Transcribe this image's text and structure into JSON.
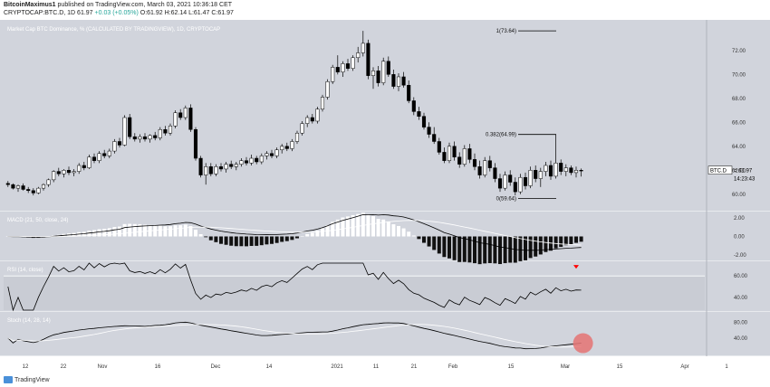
{
  "header": {
    "author": "BitcoinMaximus1",
    "published": "published on TradingView.com, March 03, 2021 10:36:18 CET",
    "symbol": "CRYPTOCAP:BTC.D, 1D",
    "last": "61.97",
    "change": "+0.03 (+0.05%)",
    "ohlc": "O:61.92 H:62.14 L:61.47 C:61.97"
  },
  "footer": {
    "brand": "TradingView"
  },
  "chart_data": {
    "type": "candlestick",
    "title": "Market Cap BTC Dominance, % (CALCULATED BY TRADINGVIEW), 1D, CRYPTOCAP",
    "price_axis_ticks": [
      60,
      62,
      64,
      66,
      68,
      70,
      72
    ],
    "price_axis_labels": [
      "60.00",
      "62.00",
      "64.00",
      "66.00",
      "68.00",
      "70.00",
      "72.00"
    ],
    "ylim": [
      59.0,
      73.8
    ],
    "time_axis_labels": [
      "12",
      "22",
      "Nov",
      "16",
      "Dec",
      "14",
      "2021",
      "11",
      "21",
      "Feb",
      "15",
      "Mar",
      "15",
      "Apr",
      "1"
    ],
    "price_label": "BTC.D",
    "price_value": "61.97",
    "countdown": "14:23:43",
    "fib_levels": [
      {
        "label": "1(73.64)",
        "value": 73.64
      },
      {
        "label": "0.382(64.99)",
        "value": 64.99
      },
      {
        "label": "0(59.64)",
        "value": 59.64
      }
    ],
    "candles": [
      [
        60.9,
        61.1,
        60.6,
        60.8
      ],
      [
        60.8,
        60.9,
        60.4,
        60.5
      ],
      [
        60.5,
        60.8,
        60.2,
        60.7
      ],
      [
        60.7,
        60.9,
        60.3,
        60.4
      ],
      [
        60.4,
        60.6,
        60.1,
        60.3
      ],
      [
        60.3,
        60.5,
        59.9,
        60.1
      ],
      [
        60.1,
        60.6,
        60.0,
        60.5
      ],
      [
        60.5,
        60.9,
        60.3,
        60.8
      ],
      [
        60.8,
        61.3,
        60.6,
        61.2
      ],
      [
        61.2,
        62.0,
        61.0,
        61.9
      ],
      [
        61.9,
        62.2,
        61.5,
        61.7
      ],
      [
        61.7,
        62.1,
        61.4,
        62.0
      ],
      [
        62.0,
        62.3,
        61.6,
        61.8
      ],
      [
        61.8,
        62.1,
        61.5,
        61.9
      ],
      [
        61.9,
        62.6,
        61.7,
        62.4
      ],
      [
        62.4,
        62.7,
        62.0,
        62.2
      ],
      [
        62.2,
        63.3,
        62.1,
        63.1
      ],
      [
        63.1,
        63.4,
        62.6,
        62.8
      ],
      [
        62.8,
        63.6,
        62.6,
        63.4
      ],
      [
        63.4,
        63.7,
        63.0,
        63.2
      ],
      [
        63.2,
        63.8,
        63.0,
        63.6
      ],
      [
        63.6,
        64.6,
        63.4,
        64.4
      ],
      [
        64.4,
        64.7,
        63.9,
        64.1
      ],
      [
        64.1,
        66.6,
        64.0,
        66.4
      ],
      [
        66.4,
        66.7,
        64.6,
        64.8
      ],
      [
        64.8,
        65.1,
        64.4,
        64.6
      ],
      [
        64.6,
        65.0,
        64.3,
        64.8
      ],
      [
        64.8,
        65.1,
        64.4,
        64.6
      ],
      [
        64.6,
        65.0,
        64.3,
        64.9
      ],
      [
        64.9,
        65.2,
        64.5,
        64.7
      ],
      [
        64.7,
        65.6,
        64.5,
        65.4
      ],
      [
        65.4,
        65.7,
        64.9,
        65.1
      ],
      [
        65.1,
        65.9,
        64.9,
        65.7
      ],
      [
        65.7,
        67.0,
        65.5,
        66.8
      ],
      [
        66.8,
        67.1,
        66.2,
        66.4
      ],
      [
        66.4,
        67.4,
        66.2,
        67.2
      ],
      [
        67.2,
        67.5,
        65.2,
        65.4
      ],
      [
        65.4,
        65.6,
        62.8,
        63.0
      ],
      [
        63.0,
        63.2,
        61.4,
        61.6
      ],
      [
        61.6,
        62.6,
        60.8,
        62.3
      ],
      [
        62.3,
        62.6,
        61.5,
        61.7
      ],
      [
        61.7,
        62.5,
        61.5,
        62.3
      ],
      [
        62.3,
        62.6,
        61.9,
        62.1
      ],
      [
        62.1,
        62.7,
        61.8,
        62.5
      ],
      [
        62.5,
        62.8,
        62.1,
        62.3
      ],
      [
        62.3,
        62.7,
        62.0,
        62.5
      ],
      [
        62.5,
        63.0,
        62.3,
        62.8
      ],
      [
        62.8,
        63.1,
        62.4,
        62.6
      ],
      [
        62.6,
        63.3,
        62.4,
        63.0
      ],
      [
        63.0,
        63.2,
        62.5,
        62.7
      ],
      [
        62.7,
        63.4,
        62.5,
        63.2
      ],
      [
        63.2,
        63.6,
        62.9,
        63.4
      ],
      [
        63.4,
        63.7,
        63.0,
        63.2
      ],
      [
        63.2,
        63.9,
        63.0,
        63.7
      ],
      [
        63.7,
        64.2,
        63.4,
        64.0
      ],
      [
        64.0,
        64.3,
        63.6,
        63.8
      ],
      [
        63.8,
        64.6,
        63.6,
        64.4
      ],
      [
        64.4,
        65.3,
        64.2,
        65.1
      ],
      [
        65.1,
        66.1,
        64.9,
        65.9
      ],
      [
        65.9,
        66.6,
        65.6,
        66.4
      ],
      [
        66.4,
        66.7,
        65.9,
        66.1
      ],
      [
        66.1,
        67.3,
        65.9,
        67.1
      ],
      [
        67.1,
        68.3,
        66.9,
        68.1
      ],
      [
        68.1,
        69.6,
        67.9,
        69.4
      ],
      [
        69.4,
        70.8,
        69.2,
        70.6
      ],
      [
        70.6,
        71.6,
        70.0,
        70.2
      ],
      [
        70.2,
        71.1,
        69.8,
        70.9
      ],
      [
        70.9,
        71.3,
        70.3,
        70.5
      ],
      [
        70.5,
        71.6,
        70.3,
        71.4
      ],
      [
        71.4,
        72.3,
        71.0,
        71.8
      ],
      [
        71.8,
        73.64,
        71.5,
        72.6
      ],
      [
        72.6,
        72.9,
        69.6,
        69.9
      ],
      [
        69.9,
        70.6,
        68.8,
        70.3
      ],
      [
        70.3,
        70.7,
        69.0,
        69.3
      ],
      [
        69.3,
        71.4,
        69.1,
        71.1
      ],
      [
        71.1,
        71.5,
        69.8,
        70.0
      ],
      [
        70.0,
        70.4,
        68.8,
        69.0
      ],
      [
        69.0,
        70.1,
        68.6,
        69.8
      ],
      [
        69.8,
        70.2,
        68.9,
        69.1
      ],
      [
        69.1,
        69.5,
        67.6,
        67.8
      ],
      [
        67.8,
        68.1,
        66.6,
        66.9
      ],
      [
        66.9,
        67.3,
        66.2,
        66.5
      ],
      [
        66.5,
        66.8,
        65.4,
        65.6
      ],
      [
        65.6,
        66.0,
        64.7,
        65.0
      ],
      [
        65.0,
        65.6,
        64.2,
        64.4
      ],
      [
        64.4,
        64.7,
        63.3,
        63.5
      ],
      [
        63.5,
        63.9,
        62.6,
        62.8
      ],
      [
        62.8,
        64.3,
        62.6,
        64.0
      ],
      [
        64.0,
        64.4,
        62.8,
        63.1
      ],
      [
        63.1,
        63.5,
        62.2,
        62.5
      ],
      [
        62.5,
        64.1,
        62.3,
        63.8
      ],
      [
        63.8,
        64.2,
        62.6,
        62.9
      ],
      [
        62.9,
        63.4,
        62.0,
        62.3
      ],
      [
        62.3,
        62.8,
        61.3,
        61.6
      ],
      [
        61.6,
        63.1,
        61.4,
        62.8
      ],
      [
        62.8,
        63.2,
        61.9,
        62.2
      ],
      [
        62.2,
        62.6,
        61.0,
        61.3
      ],
      [
        61.3,
        61.7,
        60.2,
        60.5
      ],
      [
        60.5,
        61.9,
        60.3,
        61.6
      ],
      [
        61.6,
        62.0,
        60.7,
        61.0
      ],
      [
        61.0,
        61.4,
        59.9,
        60.2
      ],
      [
        60.2,
        61.7,
        60.0,
        61.4
      ],
      [
        61.4,
        61.8,
        60.4,
        60.7
      ],
      [
        60.7,
        62.3,
        60.5,
        62.0
      ],
      [
        62.0,
        62.4,
        61.0,
        61.3
      ],
      [
        61.3,
        62.2,
        60.6,
        61.9
      ],
      [
        61.9,
        62.7,
        61.5,
        62.4
      ],
      [
        62.4,
        62.8,
        61.2,
        61.5
      ],
      [
        61.5,
        64.99,
        61.3,
        62.6
      ],
      [
        62.6,
        62.9,
        61.6,
        61.9
      ],
      [
        61.9,
        62.5,
        61.5,
        62.2
      ],
      [
        62.2,
        62.4,
        61.6,
        61.8
      ],
      [
        61.8,
        62.3,
        61.4,
        62.0
      ],
      [
        62.0,
        62.14,
        61.47,
        61.97
      ]
    ]
  },
  "macd": {
    "title": "MACD (21, 50, close, 24)",
    "ticks": [
      2,
      0,
      -2
    ],
    "tick_labels": [
      "2.00",
      "0.00",
      "-2.00"
    ],
    "ylim": [
      -2.3,
      2.3
    ]
  },
  "rsi": {
    "title": "RSI (14, close)",
    "ticks": [
      60,
      40
    ],
    "tick_labels": [
      "60.00",
      "40.00"
    ],
    "ylim": [
      28,
      72
    ],
    "overbought": 80,
    "mid": 60
  },
  "stoch": {
    "title": "Stoch (14, 28, 14)",
    "ticks": [
      80,
      40
    ],
    "tick_labels": [
      "80.00",
      "40.00"
    ],
    "ylim": [
      0,
      100
    ]
  },
  "colors": {
    "panel_bg": "#d1d4dc",
    "candle_up": "#ffffff",
    "candle_down": "#000000",
    "line": "#000000",
    "signal": "#ffffff",
    "marker": "#e57373",
    "arrow": "#ff0000"
  }
}
